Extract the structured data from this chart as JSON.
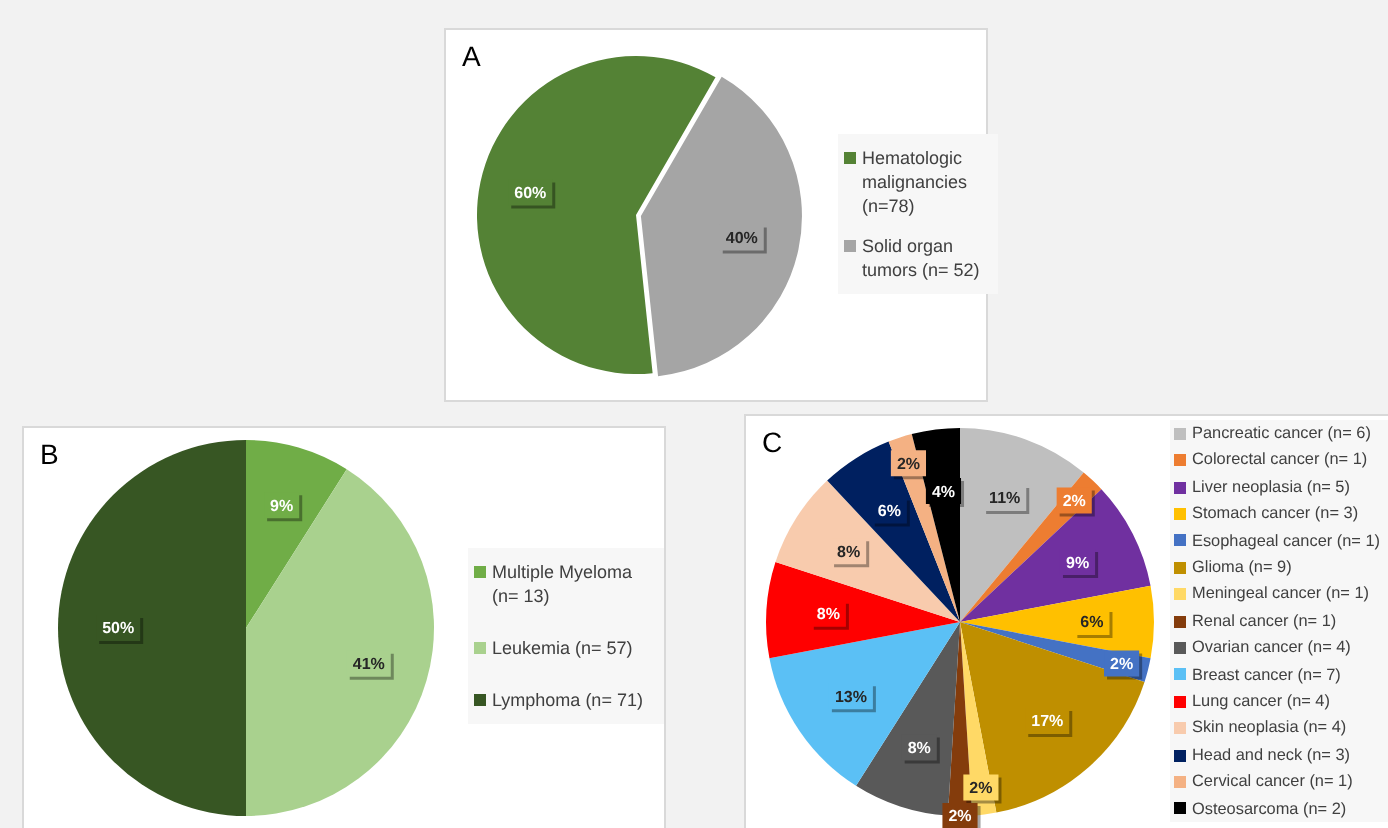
{
  "chart_data": [
    {
      "type": "pie",
      "title": "A",
      "categories": [
        "Hematologic malignancies (n=78)",
        "Solid organ tumors (n= 52)"
      ],
      "values": [
        60,
        40
      ],
      "colors": [
        "#548235",
        "#a5a5a5"
      ],
      "value_labels": [
        "60%",
        "40%"
      ],
      "legend": "right"
    },
    {
      "type": "pie",
      "title": "B",
      "categories": [
        "Multiple Myeloma (n= 13)",
        "Leukemia (n= 57)",
        "Lymphoma (n= 71)"
      ],
      "values": [
        9,
        41,
        50
      ],
      "colors": [
        "#70ad47",
        "#a9d18e",
        "#375623"
      ],
      "value_labels": [
        "9%",
        "41%",
        "50%"
      ],
      "legend": "right"
    },
    {
      "type": "pie",
      "title": "C",
      "categories": [
        "Pancreatic cancer (n= 6)",
        "Colorectal cancer (n= 1)",
        "Liver neoplasia (n= 5)",
        "Stomach cancer (n= 3)",
        "Esophageal cancer (n= 1)",
        "Glioma (n= 9)",
        "Meningeal cancer (n= 1)",
        "Renal cancer (n= 1)",
        "Ovarian cancer (n= 4)",
        "Breast cancer (n= 7)",
        "Lung cancer (n= 4)",
        "Skin neoplasia (n= 4)",
        "Head and neck (n= 3)",
        "Cervical cancer (n= 1)",
        "Osteosarcoma (n= 2)"
      ],
      "values": [
        11,
        2,
        9,
        6,
        2,
        17,
        2,
        2,
        8,
        13,
        8,
        8,
        6,
        2,
        4
      ],
      "colors": [
        "#bfbfbf",
        "#ed7d31",
        "#7030a0",
        "#ffc000",
        "#4472c4",
        "#bf8f00",
        "#ffd966",
        "#843c0c",
        "#595959",
        "#5bc0f5",
        "#ff0000",
        "#f8cbad",
        "#002060",
        "#f4b183",
        "#000000"
      ],
      "value_labels": [
        "11%",
        "2%",
        "9%",
        "6%",
        "2%",
        "17%",
        "2%",
        "2%",
        "8%",
        "13%",
        "8%",
        "8%",
        "6%",
        "2%",
        "4%"
      ],
      "legend": "right"
    }
  ]
}
